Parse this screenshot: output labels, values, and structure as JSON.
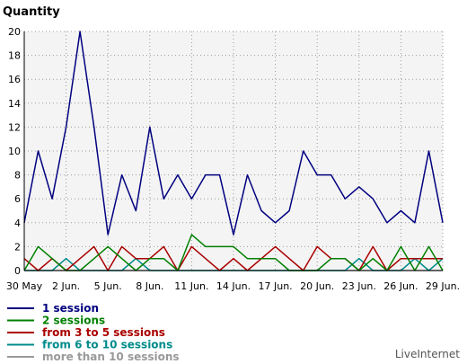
{
  "chart_data": {
    "type": "line",
    "title": "",
    "ylabel": "Quantity",
    "xlabel": "",
    "ylim": [
      0,
      20
    ],
    "y_ticks": [
      0,
      2,
      4,
      6,
      8,
      10,
      12,
      14,
      16,
      18,
      20
    ],
    "grid": true,
    "legend_placement": "bottom-left",
    "background_color": "#f4f4f4",
    "x_tick_labels": [
      "30 May",
      "2 Jun.",
      "5 Jun.",
      "8 Jun.",
      "11 Jun.",
      "14 Jun.",
      "17 Jun.",
      "20 Jun.",
      "23 Jun.",
      "26 Jun.",
      "29 Jun."
    ],
    "x_tick_indices": [
      0,
      3,
      6,
      9,
      12,
      15,
      18,
      21,
      24,
      27,
      30
    ],
    "series": [
      {
        "name": "1 session",
        "color": "#000080",
        "values": [
          4,
          10,
          6,
          12,
          20,
          12,
          3,
          8,
          5,
          12,
          6,
          8,
          6,
          8,
          8,
          3,
          8,
          5,
          4,
          5,
          10,
          8,
          8,
          6,
          7,
          6,
          4,
          5,
          4,
          10,
          4
        ]
      },
      {
        "name": "2 sessions",
        "color": "#008000",
        "values": [
          0,
          2,
          1,
          0,
          0,
          1,
          2,
          1,
          0,
          1,
          1,
          0,
          3,
          2,
          2,
          2,
          1,
          1,
          1,
          0,
          0,
          0,
          1,
          1,
          0,
          1,
          0,
          2,
          0,
          2,
          0
        ]
      },
      {
        "name": "from 3 to 5 sessions",
        "color": "#aa0000",
        "values": [
          1,
          0,
          1,
          0,
          1,
          2,
          0,
          2,
          1,
          1,
          2,
          0,
          2,
          1,
          0,
          1,
          0,
          1,
          2,
          1,
          0,
          2,
          1,
          1,
          0,
          2,
          0,
          1,
          1,
          1,
          1
        ]
      },
      {
        "name": "from 6 to 10 sessions",
        "color": "#008b8b",
        "values": [
          0,
          0,
          0,
          1,
          0,
          0,
          0,
          0,
          1,
          0,
          0,
          0,
          0,
          0,
          0,
          0,
          0,
          0,
          0,
          0,
          0,
          0,
          0,
          0,
          1,
          0,
          0,
          0,
          1,
          0,
          1
        ]
      },
      {
        "name": "more than 10 sessions",
        "color": "#999999",
        "values": [
          0,
          0,
          0,
          0,
          0,
          0,
          0,
          0,
          0,
          0,
          0,
          0,
          0,
          0,
          0,
          0,
          0,
          0,
          0,
          0,
          0,
          0,
          0,
          0,
          0,
          0,
          0,
          0,
          0,
          0,
          0
        ]
      }
    ]
  },
  "brand": "LiveInternet"
}
